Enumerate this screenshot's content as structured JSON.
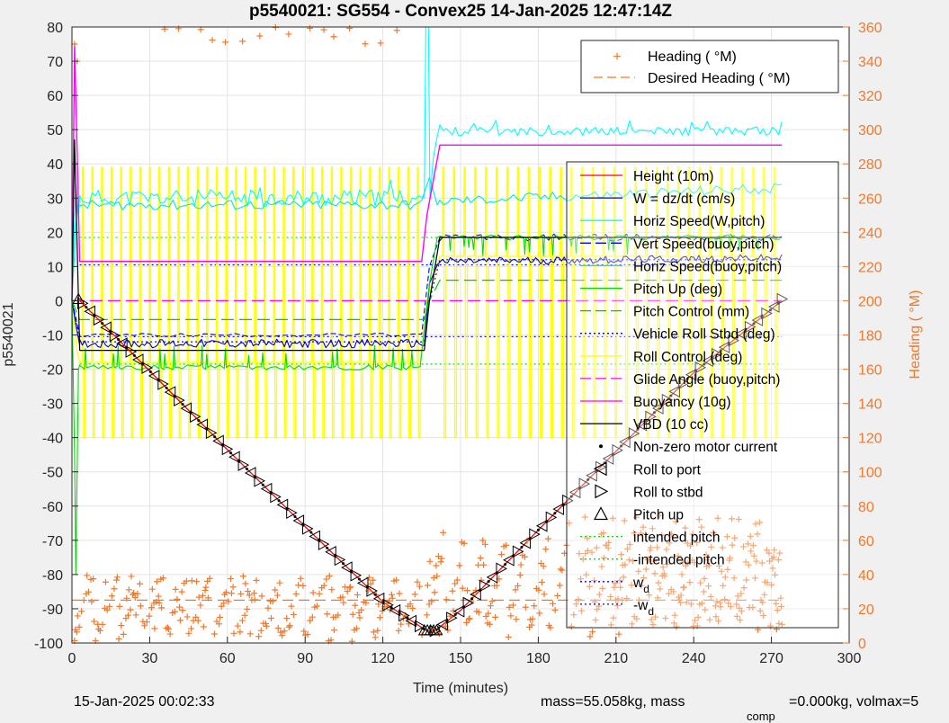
{
  "chart_data": {
    "type": "line",
    "title": "p5540021: SG554 - Convex25 14-Jan-2025 12:47:14Z",
    "xlabel": "Time (minutes)",
    "ylabel": "p5540021",
    "y2label": "Heading (  °M)",
    "xlim": [
      0,
      300
    ],
    "ylim": [
      -100,
      80
    ],
    "y2lim": [
      0,
      360
    ],
    "x_ticks": [
      "0",
      "30",
      "60",
      "90",
      "120",
      "150",
      "180",
      "210",
      "240",
      "270",
      "300"
    ],
    "y_ticks": [
      "-100",
      "-90",
      "-80",
      "-70",
      "-60",
      "-50",
      "-40",
      "-30",
      "-20",
      "-10",
      "0",
      "10",
      "20",
      "30",
      "40",
      "50",
      "60",
      "70",
      "80"
    ],
    "y2_ticks": [
      "0",
      "20",
      "40",
      "60",
      "80",
      "100",
      "120",
      "140",
      "160",
      "180",
      "200",
      "220",
      "240",
      "260",
      "280",
      "300",
      "320",
      "340",
      "360"
    ],
    "grid": true,
    "colors": {
      "height": "#ff0000",
      "w": "#0000cc",
      "horiz_w": "#00ffff",
      "vert_buoy": "#0000ff",
      "horiz_buoy": "#00e5ee",
      "pitch_up": "#00dd00",
      "pitch_control": "#00cc00",
      "roll_stbd": "#0000ff",
      "roll_control": "#ffff00",
      "glide": "#ff00ff",
      "buoyancy": "#ff00ff",
      "vbd": "#000000",
      "heading": "#f4782a",
      "intended": "#00dd00",
      "wd": "#0000ff"
    },
    "series": [
      {
        "key": "height",
        "name": "Height (10m)",
        "x": [
          0,
          3,
          30,
          60,
          90,
          120,
          137,
          140,
          150,
          180,
          210,
          240,
          274
        ],
        "y": [
          0,
          0,
          -20.5,
          -43.5,
          -66,
          -88,
          -96.5,
          -96.5,
          -90.5,
          -67,
          -44,
          -21,
          0
        ]
      },
      {
        "key": "w",
        "name": "W = dz/dt (cm/s)",
        "x": [
          0,
          3,
          20,
          60,
          100,
          136,
          138,
          142,
          160,
          200,
          240,
          274
        ],
        "y": [
          0,
          -13,
          -12.5,
          -12.5,
          -12.5,
          -12.5,
          5,
          10.5,
          11.5,
          11.5,
          12.5,
          12
        ]
      },
      {
        "key": "horiz_w",
        "name": "Horiz Speed(W,pitch)",
        "x": [
          0,
          3,
          20,
          60,
          100,
          135,
          137,
          138,
          140,
          142,
          180,
          220,
          274
        ],
        "y": [
          0,
          30,
          31,
          30.5,
          31,
          30,
          80,
          80,
          48,
          50,
          50,
          50,
          49
        ]
      },
      {
        "key": "vert_buoy",
        "name": "Vert Speed(buoy,pitch)",
        "x": [
          0,
          3,
          60,
          136,
          138,
          142,
          200,
          274
        ],
        "y": [
          0,
          -10,
          -10,
          -10,
          10,
          18.5,
          18.5,
          18.5
        ]
      },
      {
        "key": "horiz_buoy",
        "name": "Horiz Speed(buoy,pitch)",
        "x": [
          0,
          3,
          40,
          80,
          136,
          139,
          142,
          190,
          274
        ],
        "y": [
          0,
          28,
          28,
          29,
          27,
          40,
          28,
          29,
          33
        ]
      },
      {
        "key": "pitch_up",
        "name": "Pitch Up (deg)",
        "x": [
          0,
          3,
          60,
          136,
          138,
          142,
          200,
          274
        ],
        "y": [
          0,
          -19,
          -19,
          -18.5,
          5,
          18.5,
          18.5,
          18
        ]
      },
      {
        "key": "pitch_control",
        "name": "Pitch Control (mm)",
        "x": [
          0,
          3,
          136,
          138,
          142,
          274
        ],
        "y": [
          0,
          -5.5,
          -5.5,
          0,
          6,
          6
        ]
      },
      {
        "key": "roll_stbd",
        "name": "Vehicle Roll Stbd (deg)",
        "x": [
          0,
          3,
          136,
          138,
          142,
          274
        ],
        "y": [
          0,
          -12,
          -12,
          0,
          12,
          12
        ]
      },
      {
        "key": "roll_control",
        "name": "Roll Control (deg)",
        "x": [
          0,
          3,
          136,
          138,
          142,
          274
        ],
        "y": [
          0,
          -18,
          -18,
          0,
          13,
          13
        ]
      },
      {
        "key": "glide",
        "name": "Glide Angle (buoy,pitch)",
        "x": [
          0,
          3,
          274
        ],
        "y": [
          0,
          0,
          0
        ]
      },
      {
        "key": "buoyancy",
        "name": "Buoyancy (10g)",
        "x": [
          0,
          1,
          3,
          60,
          135,
          137,
          142,
          274
        ],
        "y": [
          0,
          75,
          11.5,
          11.5,
          11.5,
          25,
          45.5,
          45.5
        ]
      },
      {
        "key": "vbd",
        "name": "VBD (10 cc)",
        "x": [
          0,
          1,
          3,
          136,
          138,
          142,
          274
        ],
        "y": [
          0,
          47,
          -14.5,
          -14.5,
          0,
          18.5,
          18.5
        ]
      },
      {
        "key": "heading",
        "name": "Heading (  °M)",
        "x": [
          0,
          3,
          40,
          80,
          120,
          136,
          145,
          160,
          200,
          240,
          274
        ],
        "y2": [
          30,
          340,
          20,
          25,
          20,
          20,
          80,
          70,
          30,
          35,
          40
        ]
      },
      {
        "key": "desired",
        "name": "Desired Heading (  °M)",
        "x": [
          0,
          274
        ],
        "y2": [
          25,
          25
        ]
      }
    ],
    "reference_lines": {
      "intended_pitch": 18.5,
      "neg_intended_pitch": -18.5,
      "w_d": 10.5,
      "neg_w_d": -10.5
    },
    "legend_right_entries": [
      "Heading (  °M)",
      "Desired Heading (  °M)"
    ],
    "legend_left_entries": [
      "Height (10m)",
      "W = dz/dt (cm/s)",
      "Horiz Speed(W,pitch)",
      "Vert Speed(buoy,pitch)",
      "Horiz Speed(buoy,pitch)",
      "Pitch Up (deg)",
      "Pitch Control (mm)",
      "Vehicle Roll Stbd (deg)",
      "Roll Control (deg)",
      "Glide Angle (buoy,pitch)",
      "Buoyancy (10g)",
      "VBD (10 cc)",
      "Non-zero motor current",
      "Roll to port",
      "Roll to stbd",
      "Pitch up",
      "intended pitch",
      "-intended pitch",
      "w",
      "-w"
    ],
    "legend_wd_sub": "d",
    "legend_placement": "inside-right"
  },
  "footer": {
    "left": "15-Jan-2025 00:02:33",
    "mass": "mass=55.058kg, mass",
    "comp_sub": "comp",
    "comp_rest": "=0.000kg, volmax=5"
  }
}
